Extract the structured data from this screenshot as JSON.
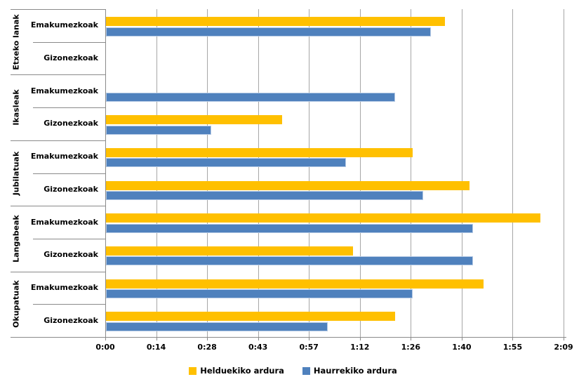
{
  "chart_data": {
    "type": "bar",
    "orientation": "horizontal",
    "title": "",
    "xlabel": "",
    "ylabel": "",
    "grid": true,
    "legend_position": "bottom",
    "x_axis": {
      "tick_labels": [
        "0:00",
        "0:14",
        "0:28",
        "0:43",
        "0:57",
        "1:12",
        "1:26",
        "1:40",
        "1:55",
        "2:09"
      ],
      "tick_minutes": [
        0,
        14.4,
        28.8,
        43.2,
        57.6,
        72,
        86.4,
        100.8,
        115.2,
        129.6
      ],
      "max_minutes": 129.6
    },
    "series": [
      {
        "name": "Helduekiko ardura",
        "color": "#ffc000"
      },
      {
        "name": "Haurrekiko ardura",
        "color": "#4f81bd"
      }
    ],
    "groups": [
      {
        "label": "Etxeko lanak",
        "rows": [
          {
            "label": "Emakumezkoak",
            "helduekiko_min": 96,
            "helduekiko_time": "1:36",
            "haurrekiko_min": 92,
            "haurrekiko_time": "1:32"
          },
          {
            "label": "Gizonezkoak",
            "helduekiko_min": 0,
            "helduekiko_time": "0:00",
            "haurrekiko_min": 0,
            "haurrekiko_time": "0:00"
          }
        ]
      },
      {
        "label": "Ikasleak",
        "rows": [
          {
            "label": "Emakumezkoak",
            "helduekiko_min": 0,
            "helduekiko_time": "0:00",
            "haurrekiko_min": 82,
            "haurrekiko_time": "1:22"
          },
          {
            "label": "Gizonezkoak",
            "helduekiko_min": 50,
            "helduekiko_time": "0:50",
            "haurrekiko_min": 30,
            "haurrekiko_time": "0:30"
          }
        ]
      },
      {
        "label": "Jubilatuak",
        "rows": [
          {
            "label": "Emakumezkoak",
            "helduekiko_min": 87,
            "helduekiko_time": "1:27",
            "haurrekiko_min": 68,
            "haurrekiko_time": "1:08"
          },
          {
            "label": "Gizonezkoak",
            "helduekiko_min": 103,
            "helduekiko_time": "1:43",
            "haurrekiko_min": 90,
            "haurrekiko_time": "1:30"
          }
        ]
      },
      {
        "label": "Langabeak",
        "rows": [
          {
            "label": "Emakumezkoak",
            "helduekiko_min": 123,
            "helduekiko_time": "2:03",
            "haurrekiko_min": 104,
            "haurrekiko_time": "1:44"
          },
          {
            "label": "Gizonezkoak",
            "helduekiko_min": 70,
            "helduekiko_time": "1:10",
            "haurrekiko_min": 104,
            "haurrekiko_time": "1:44"
          }
        ]
      },
      {
        "label": "Okupatuak",
        "rows": [
          {
            "label": "Emakumezkoak",
            "helduekiko_min": 107,
            "helduekiko_time": "1:47",
            "haurrekiko_min": 87,
            "haurrekiko_time": "1:27"
          },
          {
            "label": "Gizonezkoak",
            "helduekiko_min": 82,
            "helduekiko_time": "1:22",
            "haurrekiko_min": 63,
            "haurrekiko_time": "1:03"
          }
        ]
      }
    ],
    "colors": {
      "gridline": "#a6a6a6",
      "axis": "#8a8a8a",
      "bar_yellow": "#ffc000",
      "bar_blue": "#4f81bd",
      "bar_blue_border": "#b4c9e4",
      "text": "#000000"
    }
  }
}
